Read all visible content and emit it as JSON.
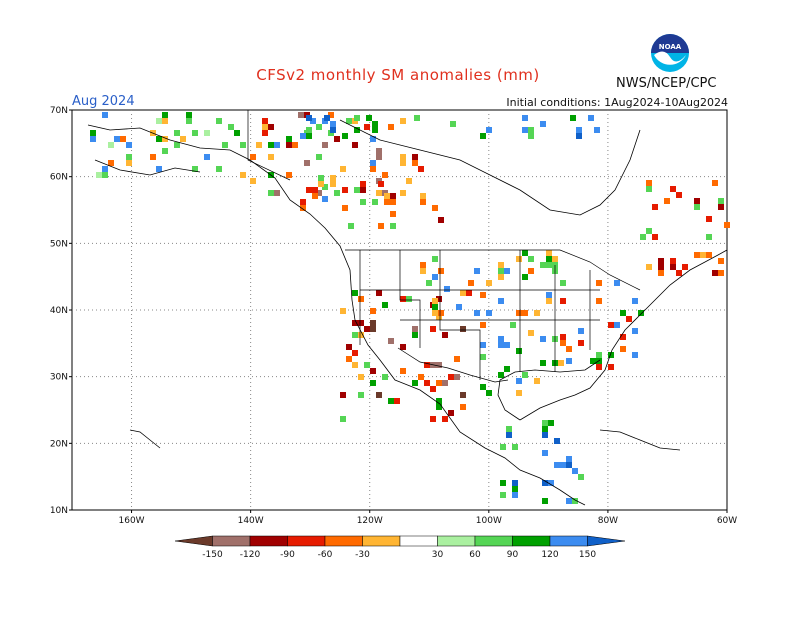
{
  "header": {
    "title": "CFSv2 monthly SM anomalies (mm)",
    "month": "Aug 2024",
    "initial_conditions": "Initial conditions: 1Aug2024-10Aug2024",
    "agency": "NWS/NCEP/CPC",
    "logo_text": "NOAA"
  },
  "axes": {
    "lat_labels": [
      "70N",
      "60N",
      "50N",
      "40N",
      "30N",
      "20N",
      "10N"
    ],
    "lon_labels": [
      "160W",
      "140W",
      "120W",
      "100W",
      "80W",
      "60W"
    ]
  },
  "legend": {
    "labels": [
      "-150",
      "-120",
      "-90",
      "-60",
      "-30",
      "30",
      "60",
      "90",
      "120",
      "150"
    ],
    "colors": [
      "#6b3a2a",
      "#a0706a",
      "#a00000",
      "#e61b00",
      "#ff6a00",
      "#ffb533",
      "#ffffff",
      "#aaf0a0",
      "#55d555",
      "#00a000",
      "#3c8cf0",
      "#1060c8"
    ]
  },
  "map": {
    "land_color": "#ffffff",
    "grid": true
  }
}
